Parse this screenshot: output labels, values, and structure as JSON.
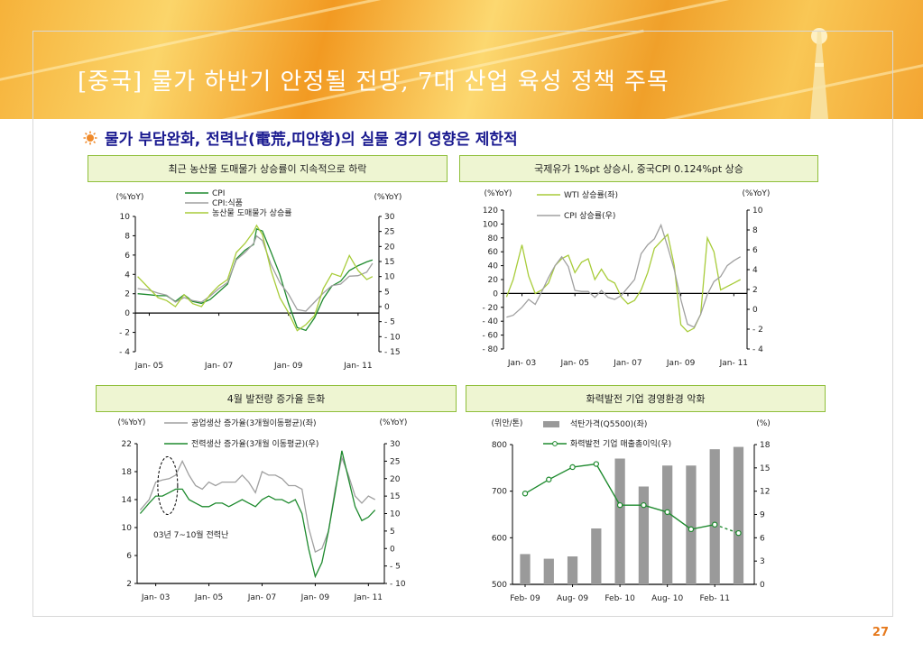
{
  "slide": {
    "title": "[중국] 물가 하반기 안정될 전망, 7대 산업 육성 정책 주목",
    "subtitle": "물가 부담완화, 전력난(電荒,띠안황)의 실물 경기 영향은 제한적",
    "page_number": "27"
  },
  "colors": {
    "green": "#1e8a2e",
    "lime": "#a8cc3a",
    "gray": "#a0a0a0",
    "bar": "#9a9a9a",
    "title_blue": "#1a1a90",
    "page_orange": "#e67a1e"
  },
  "panels": [
    {
      "header": "최근 농산물 도매물가 상승률이 지속적으로 하락"
    },
    {
      "header": "국제유가 1%pt 상승시, 중국CPI 0.124%pt 상승"
    },
    {
      "header": "4월 발전량 증가율 둔화"
    },
    {
      "header": "화력발전 기업 경영환경 악화"
    }
  ],
  "chart_data": [
    {
      "type": "line",
      "left_unit": "(%YoY)",
      "right_unit": "(%YoY)",
      "left_ticks": [
        "10",
        "8",
        "6",
        "4",
        "2",
        "0",
        "- 2",
        "- 4"
      ],
      "right_ticks": [
        "30",
        "25",
        "20",
        "15",
        "10",
        "5",
        "0",
        "- 5",
        "- 10",
        "- 15"
      ],
      "x_ticks": [
        "Jan- 05",
        "Jan- 07",
        "Jan- 09",
        "Jan- 11"
      ],
      "ylim_left": [
        -4,
        10
      ],
      "ylim_right": [
        -15,
        30
      ],
      "x": [
        "2004-09",
        "2005-01",
        "2005-04",
        "2005-07",
        "2005-10",
        "2006-01",
        "2006-04",
        "2006-07",
        "2006-10",
        "2007-01",
        "2007-04",
        "2007-07",
        "2007-10",
        "2008-01",
        "2008-02",
        "2008-04",
        "2008-07",
        "2008-10",
        "2009-01",
        "2009-04",
        "2009-07",
        "2009-10",
        "2010-01",
        "2010-04",
        "2010-07",
        "2010-10",
        "2011-01",
        "2011-04",
        "2011-06"
      ],
      "series": [
        {
          "name": "CPI",
          "color": "#1e8a2e",
          "axis": "left",
          "values": [
            2.0,
            1.9,
            1.8,
            1.8,
            1.2,
            1.9,
            1.2,
            1.0,
            1.4,
            2.2,
            3.0,
            5.6,
            6.5,
            7.1,
            8.7,
            8.5,
            6.3,
            4.0,
            1.0,
            -1.5,
            -1.8,
            -0.5,
            1.5,
            2.8,
            3.3,
            4.4,
            4.9,
            5.3,
            5.5
          ]
        },
        {
          "name": "CPI:식품",
          "color": "#a0a0a0",
          "axis": "right",
          "values": [
            6.0,
            5.5,
            4.5,
            3.8,
            1.5,
            3.0,
            2.0,
            1.5,
            3.5,
            6.0,
            8.0,
            15.5,
            18.0,
            21.0,
            23.5,
            22.0,
            14.0,
            8.0,
            4.2,
            -1.0,
            -1.5,
            1.5,
            4.5,
            7.0,
            7.5,
            10.1,
            10.3,
            11.5,
            14.4
          ]
        },
        {
          "name": "농산물 도매물가 상승률",
          "color": "#a8cc3a",
          "axis": "right",
          "values": [
            10.0,
            6.0,
            3.0,
            2.0,
            0.0,
            4.0,
            1.0,
            0.0,
            4.0,
            7.0,
            9.0,
            18.0,
            21.0,
            25.0,
            27.0,
            24.0,
            12.0,
            3.0,
            -2.0,
            -8.0,
            -6.0,
            -3.0,
            6.0,
            11.0,
            10.0,
            17.0,
            12.0,
            9.0,
            10.0
          ]
        }
      ]
    },
    {
      "type": "line",
      "left_unit": "(%YoY)",
      "right_unit": "(%YoY)",
      "left_ticks": [
        "120",
        "100",
        "80",
        "60",
        "40",
        "20",
        "0",
        "- 20",
        "- 40",
        "- 60",
        "- 80"
      ],
      "right_ticks": [
        "10",
        "8",
        "6",
        "4",
        "2",
        "0",
        "- 2",
        "- 4"
      ],
      "x_ticks": [
        "Jan- 03",
        "Jan- 05",
        "Jan- 07",
        "Jan- 09",
        "Jan- 11"
      ],
      "ylim_left": [
        -80,
        120
      ],
      "ylim_right": [
        -4,
        10
      ],
      "x": [
        "2002-06",
        "2002-09",
        "2003-01",
        "2003-04",
        "2003-07",
        "2003-10",
        "2004-01",
        "2004-04",
        "2004-07",
        "2004-10",
        "2005-01",
        "2005-04",
        "2005-07",
        "2005-10",
        "2006-01",
        "2006-04",
        "2006-07",
        "2006-10",
        "2007-01",
        "2007-04",
        "2007-07",
        "2007-10",
        "2008-01",
        "2008-04",
        "2008-07",
        "2008-10",
        "2009-01",
        "2009-04",
        "2009-07",
        "2009-10",
        "2010-01",
        "2010-04",
        "2010-07",
        "2010-10",
        "2011-01",
        "2011-04"
      ],
      "series": [
        {
          "name": "WTI 상승률(좌)",
          "color": "#a8cc3a",
          "axis": "left",
          "values": [
            -5,
            20,
            70,
            25,
            0,
            5,
            15,
            40,
            50,
            55,
            30,
            45,
            50,
            20,
            35,
            20,
            15,
            -5,
            -15,
            -10,
            5,
            30,
            65,
            75,
            85,
            40,
            -45,
            -55,
            -50,
            -30,
            80,
            60,
            5,
            10,
            15,
            20
          ]
        },
        {
          "name": "CPI 상승률(우)",
          "color": "#a0a0a0",
          "axis": "right",
          "values": [
            -0.8,
            -0.6,
            0.2,
            1.0,
            0.5,
            1.8,
            3.2,
            4.4,
            5.3,
            4.3,
            1.9,
            1.8,
            1.8,
            1.2,
            1.9,
            1.2,
            1.0,
            1.4,
            2.2,
            3.0,
            5.6,
            6.5,
            7.1,
            8.5,
            6.3,
            4.0,
            1.0,
            -1.5,
            -1.8,
            -0.5,
            1.5,
            2.8,
            3.3,
            4.4,
            4.9,
            5.3
          ]
        }
      ]
    },
    {
      "type": "line",
      "left_unit": "(%YoY)",
      "right_unit": "(%YoY)",
      "left_ticks": [
        "22",
        "18",
        "14",
        "10",
        "6",
        "2"
      ],
      "right_ticks": [
        "30",
        "25",
        "20",
        "15",
        "10",
        "5",
        "0",
        "- 5",
        "- 10"
      ],
      "x_ticks": [
        "Jan- 03",
        "Jan- 05",
        "Jan- 07",
        "Jan- 09",
        "Jan- 11"
      ],
      "ylim_left": [
        2,
        22
      ],
      "ylim_right": [
        -10,
        30
      ],
      "annotation": "03년 7~10월 전력난",
      "x": [
        "2002-06",
        "2002-10",
        "2003-01",
        "2003-04",
        "2003-07",
        "2003-10",
        "2004-01",
        "2004-04",
        "2004-07",
        "2004-10",
        "2005-01",
        "2005-04",
        "2005-07",
        "2005-10",
        "2006-01",
        "2006-04",
        "2006-07",
        "2006-10",
        "2007-01",
        "2007-04",
        "2007-07",
        "2007-10",
        "2008-01",
        "2008-04",
        "2008-07",
        "2008-10",
        "2009-01",
        "2009-04",
        "2009-07",
        "2009-10",
        "2010-01",
        "2010-04",
        "2010-07",
        "2010-10",
        "2011-01",
        "2011-04"
      ],
      "series": [
        {
          "name": "공업생산 증가율(3개월이동평균)(좌)",
          "color": "#a0a0a0",
          "axis": "left",
          "values": [
            12.5,
            14.0,
            16.5,
            16.8,
            17.0,
            17.5,
            19.5,
            17.5,
            16.0,
            15.5,
            16.5,
            16.0,
            16.5,
            16.5,
            16.5,
            17.5,
            16.5,
            15.0,
            18.0,
            17.5,
            17.5,
            17.0,
            16.0,
            16.0,
            15.5,
            10.0,
            6.5,
            7.0,
            9.5,
            15.5,
            20.0,
            17.5,
            14.5,
            13.5,
            14.5,
            14.0
          ]
        },
        {
          "name": "전력생산 증가율(3개월 이동평균)(우)",
          "color": "#1e8a2e",
          "axis": "right",
          "values": [
            10,
            13,
            15,
            15,
            16,
            17,
            17,
            14,
            13,
            12,
            12,
            13,
            13,
            12,
            13,
            14,
            13,
            12,
            14,
            15,
            14,
            14,
            13,
            14,
            10,
            0,
            -8,
            -4,
            5,
            16,
            28,
            20,
            12,
            8,
            9,
            11
          ]
        }
      ]
    },
    {
      "type": "bar",
      "left_unit": "(위안/톤)",
      "right_unit": "(%)",
      "left_ticks": [
        "800",
        "700",
        "600",
        "500"
      ],
      "right_ticks": [
        "18",
        "15",
        "12",
        "9",
        "6",
        "3",
        "0"
      ],
      "x_ticks": [
        "Feb- 09",
        "Aug- 09",
        "Feb- 10",
        "Aug- 10",
        "Feb- 11"
      ],
      "ylim_left": [
        500,
        800
      ],
      "ylim_right": [
        0,
        18
      ],
      "categories": [
        "2009-02",
        "2009-05",
        "2009-08",
        "2009-11",
        "2010-02",
        "2010-05",
        "2010-08",
        "2010-11",
        "2011-02",
        "2011-05"
      ],
      "series": [
        {
          "name": "석탄가격(Q5500)(좌)",
          "color": "#9a9a9a",
          "axis": "left",
          "kind": "bar",
          "values": [
            565,
            555,
            560,
            620,
            770,
            710,
            755,
            755,
            790,
            795
          ]
        },
        {
          "name": "화력발전 기업 매출총이익(우)",
          "color": "#1e8a2e",
          "axis": "right",
          "kind": "line",
          "values": [
            11.7,
            13.5,
            15.1,
            15.5,
            10.2,
            10.2,
            9.3,
            7.1,
            7.7,
            6.6
          ]
        }
      ]
    }
  ]
}
